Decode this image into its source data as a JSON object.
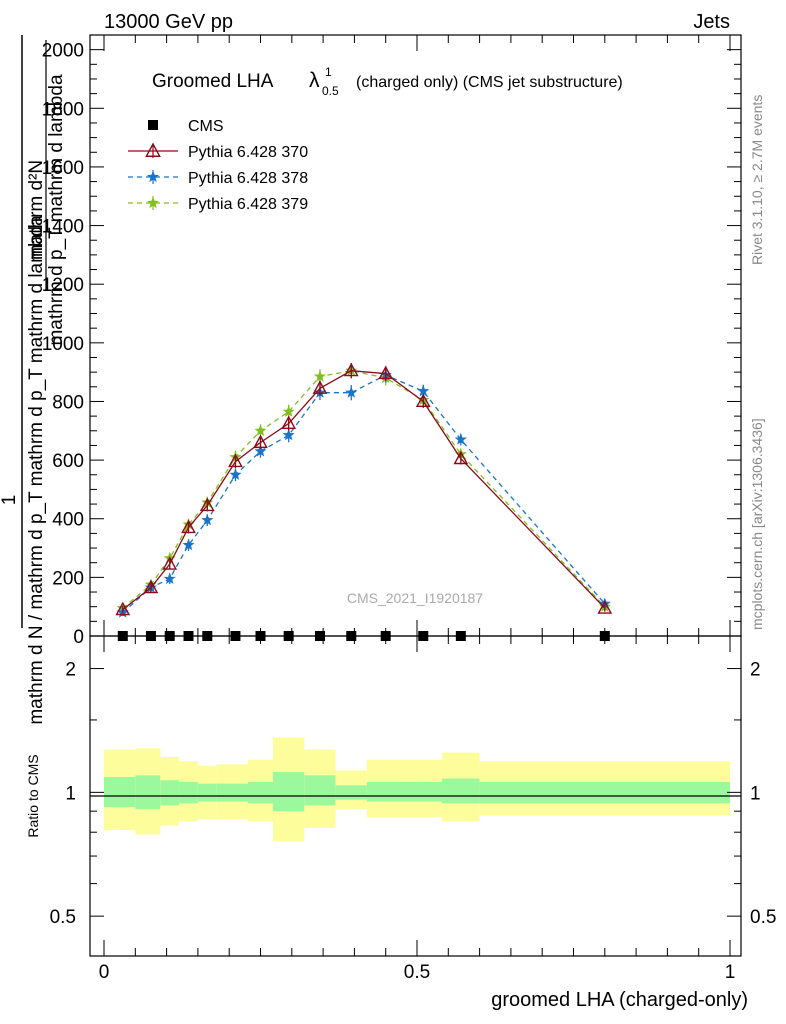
{
  "header": {
    "energy_label": "13000 GeV pp",
    "category_label": "Jets"
  },
  "side_labels": {
    "rivet": "Rivet 3.1.10, ≥ 2.7M events",
    "mcplots": "mcplots.cern.ch [arXiv:1306.3436]"
  },
  "watermark": "CMS_2021_I1920187",
  "title": {
    "main": "Groomed LHA",
    "lambda": "λ",
    "sup": "1",
    "sub": "0.5",
    "rest": "(charged only) (CMS jet substructure)"
  },
  "ylabel_upper": {
    "numer_one": "1",
    "denom_one": "mathrm d N / mathrm d p_T mathrm d p_T mathrm d lambda",
    "numer_two": "mathrm d²N",
    "denom_two": "mathrm d p_T mathrm d lambda"
  },
  "ylabel_lower": "Ratio to CMS",
  "xlabel": "groomed LHA (charged-only)",
  "colors": {
    "cms": "#000000",
    "p370": "#8b0a1a",
    "p378": "#1874cd",
    "p379": "#7fbf1f",
    "band_inner": "#9cf89c",
    "band_outer": "#fdfd9c"
  },
  "chart_data": {
    "type": "line",
    "x": [
      0.03,
      0.075,
      0.105,
      0.135,
      0.165,
      0.21,
      0.25,
      0.295,
      0.345,
      0.395,
      0.45,
      0.51,
      0.57,
      0.8
    ],
    "series": [
      {
        "name": "CMS",
        "style": "square",
        "values": [
          0,
          0,
          0,
          0,
          0,
          0,
          0,
          0,
          0,
          0,
          0,
          0,
          0,
          0
        ]
      },
      {
        "name": "Pythia 6.428 370",
        "style": "triangle-solid",
        "values": [
          90,
          165,
          245,
          370,
          445,
          595,
          660,
          725,
          845,
          905,
          895,
          800,
          605,
          95
        ],
        "errors": [
          12,
          15,
          18,
          20,
          20,
          22,
          22,
          24,
          25,
          26,
          25,
          22,
          20,
          12
        ]
      },
      {
        "name": "Pythia 6.428 378",
        "style": "star-dashed",
        "values": [
          80,
          165,
          195,
          310,
          395,
          550,
          630,
          685,
          830,
          830,
          890,
          835,
          670,
          110
        ],
        "errors": [
          12,
          15,
          18,
          20,
          20,
          22,
          22,
          24,
          25,
          26,
          25,
          22,
          20,
          12
        ]
      },
      {
        "name": "Pythia 6.428 379",
        "style": "star-dashed",
        "values": [
          95,
          175,
          265,
          380,
          455,
          610,
          700,
          765,
          885,
          905,
          880,
          805,
          620,
          100
        ],
        "errors": [
          12,
          15,
          18,
          20,
          20,
          22,
          22,
          24,
          25,
          26,
          25,
          22,
          20,
          12
        ]
      }
    ],
    "upper_ylim": [
      0,
      2050
    ],
    "upper_yticks": [
      "0",
      "200",
      "400",
      "600",
      "800",
      "1000",
      "1200",
      "1400",
      "1600",
      "1800",
      "2000"
    ],
    "upper_ytick_values": [
      0,
      200,
      400,
      600,
      800,
      1000,
      1200,
      1400,
      1600,
      1800,
      2000
    ],
    "xlim": [
      0,
      1
    ],
    "xticks": [
      "0",
      "0.5",
      "1"
    ],
    "xtick_values": [
      0,
      0.5,
      1
    ],
    "ratio": {
      "scale": "log",
      "ylim": [
        0.4,
        2.4
      ],
      "yticks": [
        "0.5",
        "1",
        "2"
      ],
      "ytick_values": [
        0.5,
        1,
        2
      ],
      "bin_edges": [
        0,
        0.05,
        0.09,
        0.12,
        0.15,
        0.18,
        0.23,
        0.27,
        0.32,
        0.37,
        0.42,
        0.48,
        0.54,
        0.6,
        1.0
      ],
      "inner_lo": [
        0.92,
        0.91,
        0.93,
        0.94,
        0.95,
        0.95,
        0.94,
        0.9,
        0.93,
        0.96,
        0.95,
        0.95,
        0.94,
        0.94
      ],
      "inner_hi": [
        1.09,
        1.1,
        1.07,
        1.06,
        1.05,
        1.05,
        1.06,
        1.12,
        1.1,
        1.04,
        1.06,
        1.06,
        1.08,
        1.06
      ],
      "outer_lo": [
        0.81,
        0.79,
        0.83,
        0.85,
        0.86,
        0.86,
        0.85,
        0.76,
        0.82,
        0.91,
        0.87,
        0.87,
        0.85,
        0.88
      ],
      "outer_hi": [
        1.27,
        1.28,
        1.22,
        1.19,
        1.16,
        1.17,
        1.2,
        1.36,
        1.27,
        1.13,
        1.2,
        1.2,
        1.25,
        1.19
      ]
    },
    "legend_position": "top-left",
    "grid": false
  }
}
